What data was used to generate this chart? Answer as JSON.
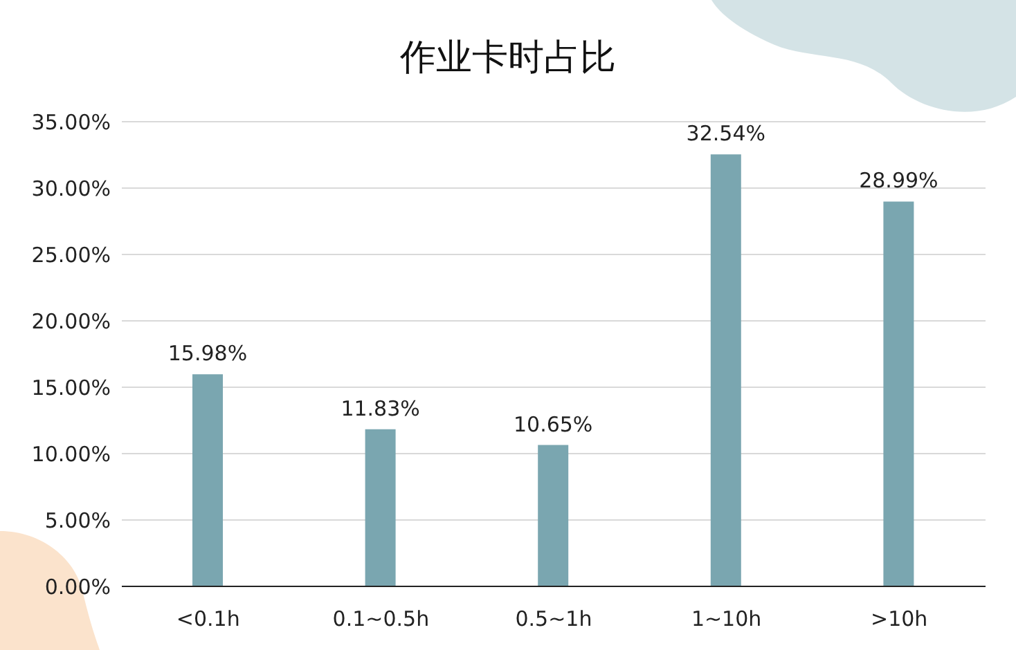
{
  "chart_data": {
    "type": "bar",
    "title": "作业卡时占比",
    "categories": [
      "<0.1h",
      "0.1~0.5h",
      "0.5~1h",
      "1~10h",
      ">10h"
    ],
    "values": [
      15.98,
      11.83,
      10.65,
      32.54,
      28.99
    ],
    "value_labels": [
      "15.98%",
      "11.83%",
      "10.65%",
      "32.54%",
      "28.99%"
    ],
    "color": "#7aa6b0",
    "ylim": [
      0,
      35
    ],
    "yticks": [
      {
        "value": 0,
        "label": "0.00%"
      },
      {
        "value": 5,
        "label": "5.00%"
      },
      {
        "value": 10,
        "label": "10.00%"
      },
      {
        "value": 15,
        "label": "15.00%"
      },
      {
        "value": 20,
        "label": "20.00%"
      },
      {
        "value": 25,
        "label": "25.00%"
      },
      {
        "value": 30,
        "label": "30.00%"
      },
      {
        "value": 35,
        "label": "35.00%"
      }
    ],
    "grid": "y"
  }
}
